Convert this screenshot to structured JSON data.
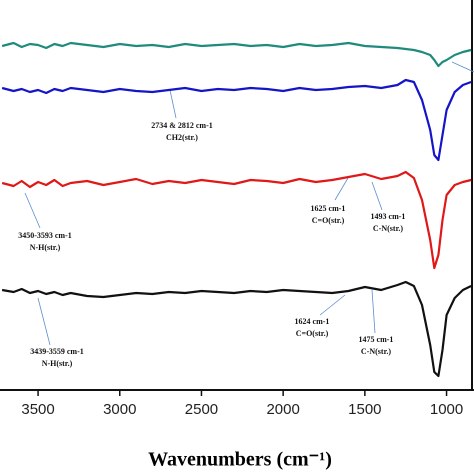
{
  "chart_data": {
    "type": "line",
    "x_label": "Wavenumbers (cm⁻¹)",
    "x": [
      3720,
      3650,
      3600,
      3550,
      3500,
      3450,
      3400,
      3350,
      3300,
      3200,
      3100,
      3000,
      2900,
      2800,
      2700,
      2600,
      2500,
      2400,
      2300,
      2200,
      2100,
      2000,
      1900,
      1800,
      1700,
      1600,
      1500,
      1400,
      1300,
      1250,
      1200,
      1150,
      1100,
      1075,
      1050,
      1025,
      1000,
      950,
      900,
      850
    ],
    "xlim": [
      3733,
      832
    ],
    "xticks": [
      3500,
      3000,
      2500,
      2000,
      1500,
      1000
    ],
    "ylim": [
      0,
      390
    ],
    "series": [
      {
        "color": "#1f8a7e",
        "values": [
          344,
          347,
          343,
          346,
          345,
          342,
          346,
          344,
          347,
          345,
          343,
          346,
          344,
          345,
          343,
          346,
          344,
          345,
          346,
          344,
          345,
          343,
          346,
          344,
          345,
          347,
          344,
          343,
          342,
          341,
          340,
          338,
          335,
          330,
          324,
          328,
          330,
          335,
          338,
          340
        ]
      },
      {
        "color": "#1515c8",
        "values": [
          302,
          299,
          301,
          298,
          300,
          297,
          301,
          299,
          302,
          300,
          298,
          301,
          299,
          298,
          300,
          302,
          299,
          301,
          300,
          302,
          301,
          299,
          302,
          300,
          301,
          303,
          304,
          302,
          305,
          310,
          308,
          290,
          260,
          235,
          230,
          255,
          280,
          298,
          305,
          308
        ]
      },
      {
        "color": "#e01818",
        "values": [
          207,
          204,
          209,
          203,
          208,
          205,
          210,
          204,
          207,
          209,
          205,
          208,
          211,
          206,
          209,
          207,
          210,
          208,
          206,
          210,
          209,
          207,
          211,
          208,
          210,
          213,
          216,
          211,
          214,
          218,
          212,
          190,
          150,
          122,
          135,
          170,
          195,
          205,
          208,
          210
        ]
      },
      {
        "color": "#111111",
        "values": [
          100,
          98,
          101,
          97,
          99,
          96,
          98,
          95,
          97,
          94,
          93,
          95,
          97,
          96,
          98,
          97,
          99,
          98,
          97,
          99,
          98,
          100,
          99,
          98,
          97,
          99,
          103,
          100,
          105,
          108,
          104,
          85,
          45,
          18,
          14,
          40,
          75,
          92,
          100,
          104
        ]
      }
    ],
    "annotations": [
      "2734 & 2812 cm-1",
      "CH2(str.)",
      "3450-3593 cm-1",
      "N-H(str.)",
      "1625 cm-1",
      "C=O(str.)",
      "1493 cm-1",
      "C-N(str.)",
      "3439-3559 cm-1",
      "N-H(str.)",
      "1624 cm-1",
      "C=O(str.)",
      "1475 cm-1",
      "C-N(str.)"
    ]
  }
}
